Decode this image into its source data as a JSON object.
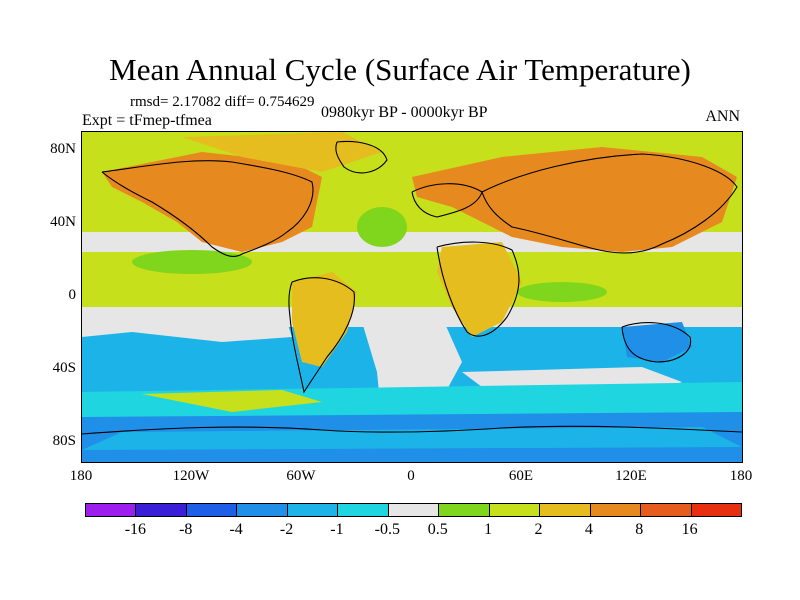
{
  "title": "Mean Annual Cycle (Surface Air Temperature)",
  "stats": "rmsd= 2.17082 diff= 0.754629",
  "experiment": "Expt = tFmep-tfmea",
  "period": "0980kyr BP - 0000kyr BP",
  "season": "ANN",
  "axes": {
    "lat_labels": [
      "80N",
      "40N",
      "0",
      "40S",
      "80S"
    ],
    "lon_labels": [
      "180",
      "120W",
      "60W",
      "0",
      "60E",
      "120E",
      "180"
    ]
  },
  "colorbar": {
    "labels": [
      "-16",
      "-8",
      "-4",
      "-2",
      "-1",
      "-0.5",
      "0.5",
      "1",
      "2",
      "4",
      "8",
      "16"
    ],
    "colors": [
      "#9c1ff0",
      "#3a1fd6",
      "#1f5ee6",
      "#1f8fe8",
      "#1cb4e8",
      "#1fd6e0",
      "#e6e6e6",
      "#7fd61c",
      "#c7e01c",
      "#e6bd1f",
      "#e6891f",
      "#e65c1f",
      "#e6300f"
    ]
  },
  "map_colors": {
    "ocean_high_lat": "#c7e01c",
    "land_warm": "#e6891f",
    "land_moderate": "#e6bd1f",
    "tropics": "#c7e01c",
    "equatorial_green": "#7fd61c",
    "neutral": "#e6e6e6",
    "southern_cool": "#1cb4e8",
    "southern_cold": "#1f8fe8",
    "southern_light": "#1fd6e0",
    "coastline": "#000000"
  }
}
